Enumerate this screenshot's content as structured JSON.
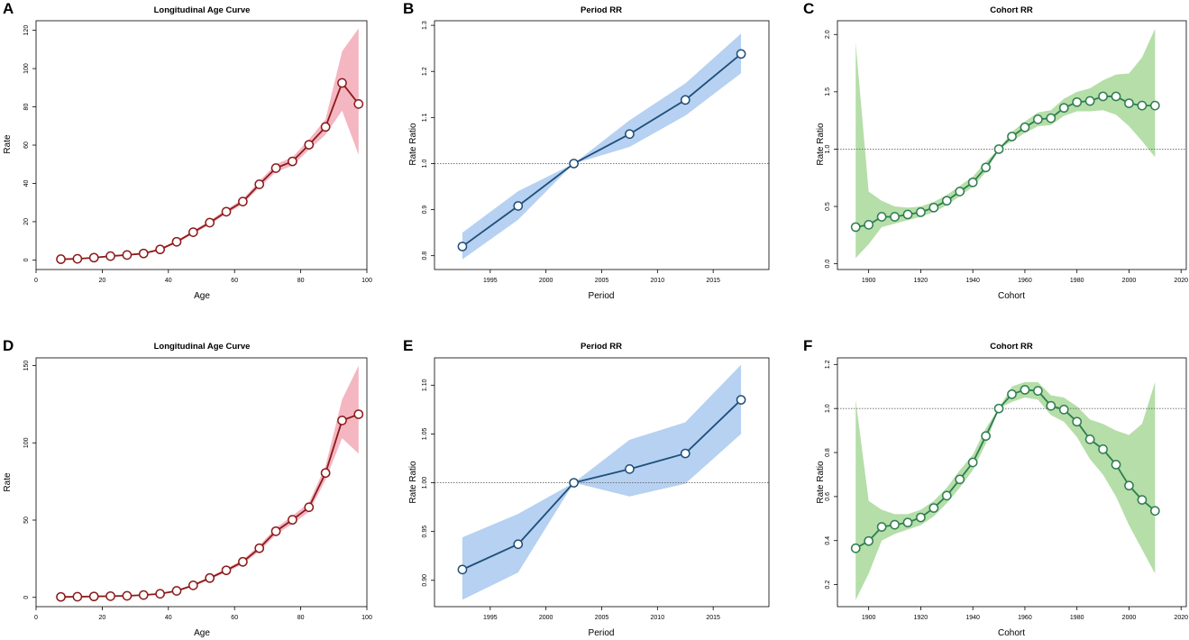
{
  "colors": {
    "age_line": "#8b1a1a",
    "age_band": "#f2a9b6",
    "period_line": "#1f4e79",
    "period_band": "#a9c9ee",
    "cohort_line": "#2e7d4f",
    "cohort_band": "#a8d89a",
    "reference_line": "#666666"
  },
  "chart_data": [
    {
      "panel": "A",
      "type": "line",
      "title": "Longitudinal Age Curve",
      "xlabel": "Age",
      "ylabel": "Rate",
      "xlim": [
        0,
        100
      ],
      "ylim": [
        -5,
        125
      ],
      "xticks": [
        0,
        20,
        40,
        60,
        80,
        100
      ],
      "yticks": [
        0,
        20,
        40,
        60,
        80,
        100,
        120
      ],
      "xtick_labels": [
        "0",
        "20",
        "40",
        "60",
        "80",
        "100"
      ],
      "ytick_labels": [
        "0",
        "20",
        "40",
        "60",
        "80",
        "100",
        "120"
      ],
      "reference": null,
      "style": "age",
      "x": [
        7.5,
        12.5,
        17.5,
        22.5,
        27.5,
        32.5,
        37.5,
        42.5,
        47.5,
        52.5,
        57.5,
        62.5,
        67.5,
        72.5,
        77.5,
        82.5,
        87.5,
        92.5,
        97.5
      ],
      "y": [
        0.4,
        0.6,
        1.2,
        2.0,
        2.6,
        3.4,
        5.5,
        9.5,
        14.5,
        19.5,
        25.2,
        30.5,
        39.5,
        48.0,
        51.5,
        60.2,
        69.5,
        92.5,
        81.5
      ],
      "lower": [
        0.2,
        0.4,
        0.9,
        1.6,
        2.2,
        3.0,
        5.0,
        8.8,
        13.6,
        18.5,
        24.0,
        29.2,
        37.8,
        46.0,
        49.3,
        57.5,
        65.5,
        78.0,
        55.0
      ],
      "upper": [
        0.6,
        0.8,
        1.5,
        2.4,
        3.0,
        3.8,
        6.0,
        10.2,
        15.4,
        20.5,
        26.4,
        31.8,
        41.2,
        50.0,
        53.7,
        63.0,
        73.5,
        109.0,
        121.0
      ]
    },
    {
      "panel": "B",
      "type": "line",
      "title": "Period RR",
      "xlabel": "Period",
      "ylabel": "Rate Ratio",
      "xlim": [
        1990,
        2020
      ],
      "ylim": [
        0.77,
        1.31
      ],
      "xticks": [
        1995,
        2000,
        2005,
        2010,
        2015
      ],
      "yticks": [
        0.8,
        0.9,
        1.0,
        1.1,
        1.2,
        1.3
      ],
      "xtick_labels": [
        "1995",
        "2000",
        "2005",
        "2010",
        "2015"
      ],
      "ytick_labels": [
        "0.8",
        "0.9",
        "1.0",
        "1.1",
        "1.2",
        "1.3"
      ],
      "reference": 1.0,
      "style": "period",
      "x": [
        1992.5,
        1997.5,
        2002.5,
        2007.5,
        2012.5,
        2017.5
      ],
      "y": [
        0.82,
        0.908,
        1.0,
        1.064,
        1.138,
        1.238
      ],
      "lower": [
        0.792,
        0.878,
        1.0,
        1.036,
        1.104,
        1.196
      ],
      "upper": [
        0.85,
        0.94,
        1.0,
        1.094,
        1.174,
        1.282
      ]
    },
    {
      "panel": "C",
      "type": "line",
      "title": "Cohort RR",
      "xlabel": "Cohort",
      "ylabel": "Rate Ratio",
      "xlim": [
        1888,
        2022
      ],
      "ylim": [
        -0.05,
        2.12
      ],
      "xticks": [
        1900,
        1920,
        1940,
        1960,
        1980,
        2000,
        2020
      ],
      "yticks": [
        0.0,
        0.5,
        1.0,
        1.5,
        2.0
      ],
      "xtick_labels": [
        "1900",
        "1920",
        "1940",
        "1960",
        "1980",
        "2000",
        "2020"
      ],
      "ytick_labels": [
        "0.0",
        "0.5",
        "1.0",
        "1.5",
        "2.0"
      ],
      "reference": 1.0,
      "style": "cohort",
      "x": [
        1895,
        1900,
        1905,
        1910,
        1915,
        1920,
        1925,
        1930,
        1935,
        1940,
        1945,
        1950,
        1955,
        1960,
        1965,
        1970,
        1975,
        1980,
        1985,
        1990,
        1995,
        2000,
        2005,
        2010
      ],
      "y": [
        0.32,
        0.34,
        0.41,
        0.41,
        0.43,
        0.45,
        0.49,
        0.55,
        0.63,
        0.71,
        0.84,
        1.0,
        1.11,
        1.19,
        1.26,
        1.27,
        1.36,
        1.41,
        1.42,
        1.46,
        1.46,
        1.4,
        1.38,
        1.38
      ],
      "lower": [
        0.05,
        0.17,
        0.32,
        0.35,
        0.38,
        0.41,
        0.45,
        0.51,
        0.59,
        0.67,
        0.8,
        1.0,
        1.07,
        1.14,
        1.2,
        1.21,
        1.29,
        1.33,
        1.33,
        1.34,
        1.3,
        1.2,
        1.07,
        0.93
      ],
      "upper": [
        1.93,
        0.63,
        0.55,
        0.5,
        0.49,
        0.5,
        0.54,
        0.6,
        0.68,
        0.76,
        0.89,
        1.0,
        1.15,
        1.24,
        1.32,
        1.34,
        1.44,
        1.5,
        1.53,
        1.6,
        1.65,
        1.66,
        1.8,
        2.05
      ]
    },
    {
      "panel": "D",
      "type": "line",
      "title": "Longitudinal Age Curve",
      "xlabel": "Age",
      "ylabel": "Rate",
      "xlim": [
        0,
        100
      ],
      "ylim": [
        -6,
        155
      ],
      "xticks": [
        0,
        20,
        40,
        60,
        80,
        100
      ],
      "yticks": [
        0,
        50,
        100,
        150
      ],
      "xtick_labels": [
        "0",
        "20",
        "40",
        "60",
        "80",
        "100"
      ],
      "ytick_labels": [
        "0",
        "50",
        "100",
        "150"
      ],
      "reference": null,
      "style": "age",
      "x": [
        7.5,
        12.5,
        17.5,
        22.5,
        27.5,
        32.5,
        37.5,
        42.5,
        47.5,
        52.5,
        57.5,
        62.5,
        67.5,
        72.5,
        77.5,
        82.5,
        87.5,
        92.5,
        97.5
      ],
      "y": [
        0.3,
        0.4,
        0.6,
        0.8,
        1.0,
        1.5,
        2.3,
        4.2,
        7.8,
        12.5,
        17.5,
        23.0,
        31.8,
        42.8,
        50.2,
        58.3,
        80.5,
        114.5,
        118.5
      ],
      "lower": [
        0.1,
        0.2,
        0.4,
        0.6,
        0.8,
        1.2,
        1.9,
        3.7,
        7.1,
        11.6,
        16.4,
        21.6,
        29.9,
        40.6,
        47.6,
        55.3,
        76.0,
        103.0,
        93.0
      ],
      "upper": [
        0.5,
        0.6,
        0.8,
        1.0,
        1.2,
        1.8,
        2.7,
        4.7,
        8.5,
        13.4,
        18.6,
        24.4,
        33.7,
        45.0,
        52.8,
        61.3,
        85.0,
        128.0,
        150.0
      ]
    },
    {
      "panel": "E",
      "type": "line",
      "title": "Period RR",
      "xlabel": "Period",
      "ylabel": "Rate Ratio",
      "xlim": [
        1990,
        2020
      ],
      "ylim": [
        0.873,
        1.128
      ],
      "xticks": [
        1995,
        2000,
        2005,
        2010,
        2015
      ],
      "yticks": [
        0.9,
        0.95,
        1.0,
        1.05,
        1.1
      ],
      "xtick_labels": [
        "1995",
        "2000",
        "2005",
        "2010",
        "2015"
      ],
      "ytick_labels": [
        "0.90",
        "0.95",
        "1.00",
        "1.05",
        "1.10"
      ],
      "reference": 1.0,
      "style": "period",
      "x": [
        1992.5,
        1997.5,
        2002.5,
        2007.5,
        2012.5,
        2017.5
      ],
      "y": [
        0.911,
        0.937,
        1.0,
        1.014,
        1.03,
        1.085
      ],
      "lower": [
        0.88,
        0.908,
        1.0,
        0.986,
        0.999,
        1.05
      ],
      "upper": [
        0.944,
        0.968,
        1.0,
        1.044,
        1.062,
        1.121
      ]
    },
    {
      "panel": "F",
      "type": "line",
      "title": "Cohort RR",
      "xlabel": "Cohort",
      "ylabel": "Rate Ratio",
      "xlim": [
        1888,
        2022
      ],
      "ylim": [
        0.1,
        1.23
      ],
      "xticks": [
        1900,
        1920,
        1940,
        1960,
        1980,
        2000,
        2020
      ],
      "yticks": [
        0.2,
        0.4,
        0.6,
        0.8,
        1.0,
        1.2
      ],
      "xtick_labels": [
        "1900",
        "1920",
        "1940",
        "1960",
        "1980",
        "2000",
        "2020"
      ],
      "ytick_labels": [
        "0.2",
        "0.4",
        "0.6",
        "0.8",
        "1.0",
        "1.2"
      ],
      "reference": 1.0,
      "style": "cohort",
      "x": [
        1895,
        1900,
        1905,
        1910,
        1915,
        1920,
        1925,
        1930,
        1935,
        1940,
        1945,
        1950,
        1955,
        1960,
        1965,
        1970,
        1975,
        1980,
        1985,
        1990,
        1995,
        2000,
        2005,
        2010
      ],
      "y": [
        0.365,
        0.398,
        0.462,
        0.472,
        0.482,
        0.505,
        0.548,
        0.604,
        0.678,
        0.755,
        0.875,
        1.0,
        1.065,
        1.085,
        1.08,
        1.012,
        0.995,
        0.94,
        0.86,
        0.815,
        0.745,
        0.65,
        0.585,
        0.535
      ],
      "lower": [
        0.13,
        0.25,
        0.4,
        0.43,
        0.45,
        0.47,
        0.51,
        0.57,
        0.64,
        0.72,
        0.84,
        1.0,
        1.03,
        1.05,
        1.04,
        0.97,
        0.94,
        0.87,
        0.77,
        0.7,
        0.6,
        0.47,
        0.36,
        0.25
      ],
      "upper": [
        1.04,
        0.58,
        0.54,
        0.52,
        0.52,
        0.54,
        0.58,
        0.64,
        0.72,
        0.79,
        0.91,
        1.0,
        1.1,
        1.12,
        1.12,
        1.06,
        1.05,
        1.01,
        0.95,
        0.93,
        0.9,
        0.88,
        0.93,
        1.12
      ]
    }
  ]
}
